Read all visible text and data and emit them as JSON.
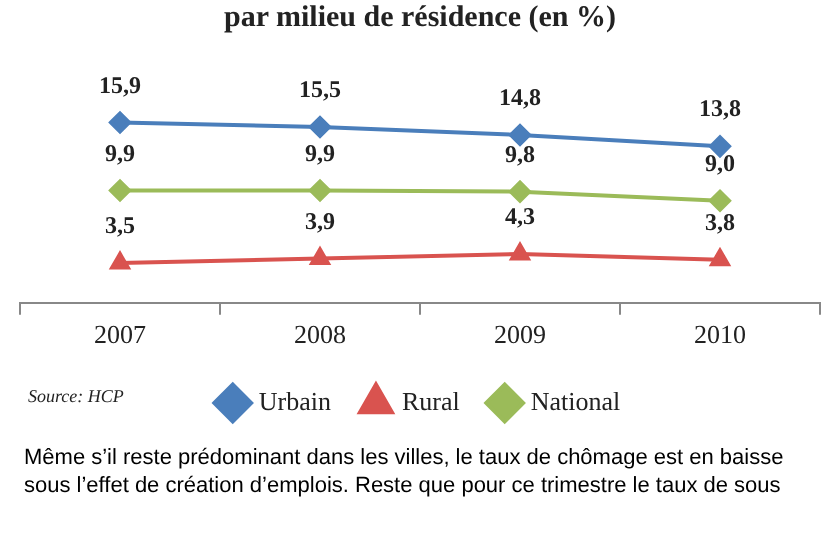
{
  "chart_data": {
    "type": "line",
    "title": "par milieu de résidence (en %)",
    "categories": [
      "2007",
      "2008",
      "2009",
      "2010"
    ],
    "series": [
      {
        "name": "Urbain",
        "color": "#4a7ebb",
        "marker": "diamond",
        "values": [
          15.9,
          15.5,
          14.8,
          13.8
        ],
        "value_labels": [
          "15,9",
          "15,5",
          "14,8",
          "13,8"
        ]
      },
      {
        "name": "Rural",
        "color": "#d9534f",
        "marker": "triangle",
        "values": [
          3.5,
          3.9,
          4.3,
          3.8
        ],
        "value_labels": [
          "3,5",
          "3,9",
          "4,3",
          "3,8"
        ]
      },
      {
        "name": "National",
        "color": "#9bbb59",
        "marker": "diamond",
        "values": [
          9.9,
          9.9,
          9.8,
          9.0
        ],
        "value_labels": [
          "9,9",
          "9,9",
          "9,8",
          "9,0"
        ]
      }
    ],
    "legend": "bottom",
    "grid": false,
    "tick_labels": "x",
    "line_style": "solid",
    "annotations": [
      "Source: HCP",
      "Même s’il reste prédominant dans les villes, le taux de chômage est en baisse sous l’effet de création d’emplois. Reste que pour ce trimestre le taux de sous"
    ]
  }
}
